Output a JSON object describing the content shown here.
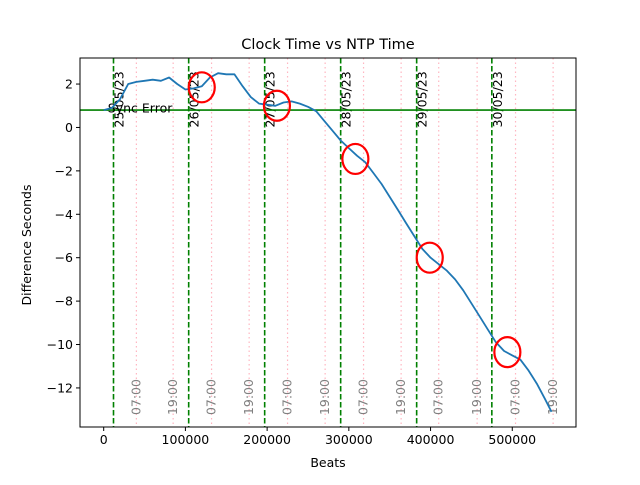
{
  "chart_data": {
    "type": "line",
    "title": "Clock Time vs NTP Time",
    "xlabel": "Beats",
    "ylabel": "Difference Seconds",
    "xlim": [
      -29000,
      578000
    ],
    "ylim": [
      -13.8,
      3.2
    ],
    "xticks": [
      0,
      100000,
      200000,
      300000,
      400000,
      500000
    ],
    "xtick_labels": [
      "0",
      "100000",
      "200000",
      "300000",
      "400000",
      "500000"
    ],
    "yticks": [
      2,
      0,
      -2,
      -4,
      -6,
      -8,
      -10,
      -12
    ],
    "ytick_labels": [
      "2",
      "0",
      "−2",
      "−4",
      "−6",
      "−8",
      "−10",
      "−12"
    ],
    "grid": false,
    "series": [
      {
        "color": "#1f77b4",
        "points": [
          [
            0,
            0.8
          ],
          [
            10000,
            0.9
          ],
          [
            20000,
            1.3
          ],
          [
            30000,
            2.0
          ],
          [
            40000,
            2.1
          ],
          [
            50000,
            2.15
          ],
          [
            60000,
            2.2
          ],
          [
            70000,
            2.15
          ],
          [
            80000,
            2.3
          ],
          [
            90000,
            2.0
          ],
          [
            100000,
            1.75
          ],
          [
            110000,
            1.8
          ],
          [
            120000,
            1.9
          ],
          [
            130000,
            2.3
          ],
          [
            140000,
            2.5
          ],
          [
            150000,
            2.45
          ],
          [
            160000,
            2.45
          ],
          [
            170000,
            1.9
          ],
          [
            180000,
            1.4
          ],
          [
            190000,
            1.1
          ],
          [
            200000,
            1.05
          ],
          [
            210000,
            1.0
          ],
          [
            220000,
            1.15
          ],
          [
            230000,
            1.2
          ],
          [
            240000,
            1.1
          ],
          [
            250000,
            0.95
          ],
          [
            260000,
            0.75
          ],
          [
            270000,
            0.3
          ],
          [
            280000,
            -0.15
          ],
          [
            290000,
            -0.6
          ],
          [
            300000,
            -0.95
          ],
          [
            310000,
            -1.3
          ],
          [
            320000,
            -1.6
          ],
          [
            330000,
            -2.1
          ],
          [
            340000,
            -2.6
          ],
          [
            350000,
            -3.2
          ],
          [
            360000,
            -3.8
          ],
          [
            370000,
            -4.4
          ],
          [
            380000,
            -5.0
          ],
          [
            390000,
            -5.6
          ],
          [
            400000,
            -6.0
          ],
          [
            410000,
            -6.3
          ],
          [
            420000,
            -6.6
          ],
          [
            430000,
            -7.0
          ],
          [
            440000,
            -7.5
          ],
          [
            450000,
            -8.1
          ],
          [
            460000,
            -8.7
          ],
          [
            470000,
            -9.3
          ],
          [
            480000,
            -9.9
          ],
          [
            490000,
            -10.3
          ],
          [
            500000,
            -10.5
          ],
          [
            510000,
            -10.7
          ],
          [
            520000,
            -11.2
          ],
          [
            530000,
            -11.8
          ],
          [
            540000,
            -12.5
          ],
          [
            548000,
            -13.1
          ]
        ]
      }
    ],
    "hlines": [
      {
        "y": 0.8,
        "color": "#008000",
        "style": "solid"
      }
    ],
    "day_lines": [
      {
        "x": 12000,
        "label": "25/05/23"
      },
      {
        "x": 104000,
        "label": "26/05/23"
      },
      {
        "x": 197000,
        "label": "27/05/23"
      },
      {
        "x": 290000,
        "label": "28/05/23"
      },
      {
        "x": 383000,
        "label": "29/05/23"
      },
      {
        "x": 475000,
        "label": "30/05/23"
      }
    ],
    "day_line_color": "#008000",
    "time_lines": [
      {
        "x": 40000,
        "label": "07:00"
      },
      {
        "x": 85000,
        "label": "19:00"
      },
      {
        "x": 132000,
        "label": "07:00"
      },
      {
        "x": 178000,
        "label": "19:00"
      },
      {
        "x": 225000,
        "label": "07:00"
      },
      {
        "x": 271000,
        "label": "19:00"
      },
      {
        "x": 318000,
        "label": "07:00"
      },
      {
        "x": 364000,
        "label": "19:00"
      },
      {
        "x": 410000,
        "label": "07:00"
      },
      {
        "x": 457000,
        "label": "19:00"
      },
      {
        "x": 504000,
        "label": "07:00"
      },
      {
        "x": 550000,
        "label": "19:00"
      }
    ],
    "time_line_color": "#ffb6c1",
    "time_label_color": "#808080",
    "circles": [
      {
        "x": 120000,
        "y": 1.85
      },
      {
        "x": 212000,
        "y": 1.0
      },
      {
        "x": 308000,
        "y": -1.45
      },
      {
        "x": 399000,
        "y": -6.0
      },
      {
        "x": 494000,
        "y": -10.35
      }
    ],
    "circle_color": "#ff0000",
    "annotations": [
      {
        "x": 5000,
        "y": 0.92,
        "text": "Sync Error"
      }
    ]
  }
}
